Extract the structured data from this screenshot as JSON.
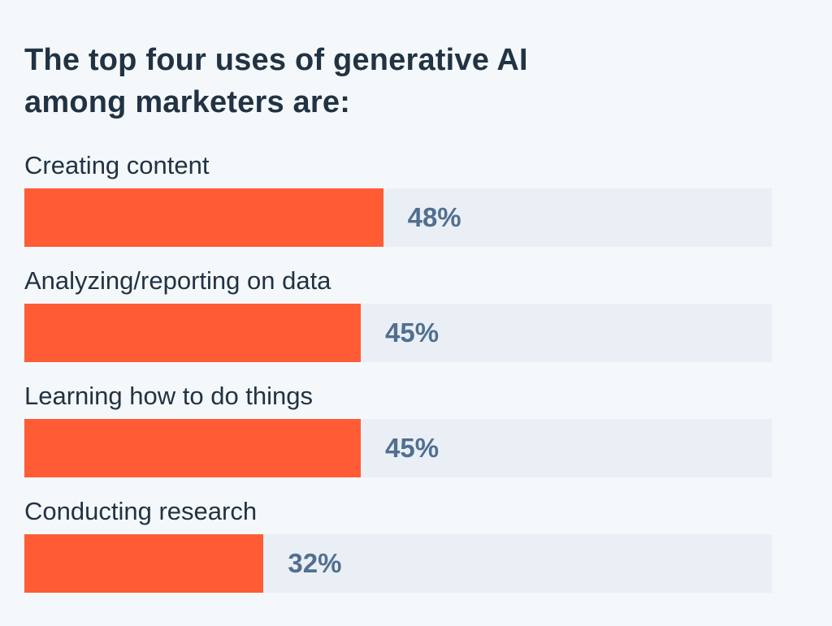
{
  "chart_data": {
    "type": "bar",
    "title": "The top four uses of generative AI among marketers are:",
    "categories": [
      "Creating content",
      "Analyzing/reporting on data",
      "Learning how to do things",
      "Conducting research"
    ],
    "values": [
      48,
      45,
      45,
      32
    ],
    "value_labels": [
      "48%",
      "45%",
      "45%",
      "32%"
    ],
    "xlim": [
      0,
      100
    ],
    "orientation": "horizontal",
    "grid": false,
    "colors": {
      "bar": "#ff5c35",
      "track": "#e9eff5",
      "title": "#213343",
      "label": "#213343",
      "value": "#516f90",
      "background": "#f5f8fb"
    }
  }
}
